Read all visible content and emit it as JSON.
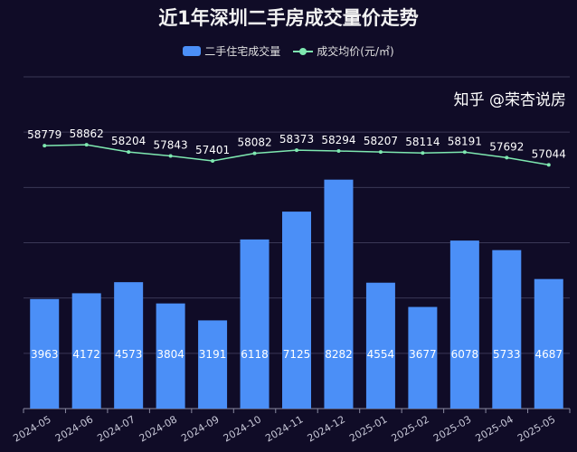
{
  "chart_data": {
    "type": "bar+line",
    "title": "近1年深圳二手房成交量价走势",
    "categories": [
      "2024-05",
      "2024-06",
      "2024-07",
      "2024-08",
      "2024-09",
      "2024-10",
      "2024-11",
      "2024-12",
      "2025-01",
      "2025-02",
      "2025-03",
      "2025-04",
      "2025-05"
    ],
    "series": [
      {
        "name": "二手住宅成交量",
        "type": "bar",
        "color": "#4b8ff7",
        "values": [
          3963,
          4172,
          4573,
          3804,
          3191,
          6118,
          7125,
          8282,
          4554,
          3677,
          6078,
          5733,
          4687
        ]
      },
      {
        "name": "成交均价(元/㎡)",
        "type": "line",
        "color": "#7ee8b0",
        "values": [
          58779,
          58862,
          58204,
          57843,
          57401,
          58082,
          58373,
          58294,
          58207,
          58114,
          58191,
          57692,
          57044
        ]
      }
    ],
    "ylim": [
      0,
      12000
    ],
    "y2lim": [
      35000,
      65000
    ],
    "grid": true,
    "legend": "top-center"
  },
  "watermark": "知乎 @荣杏说房"
}
